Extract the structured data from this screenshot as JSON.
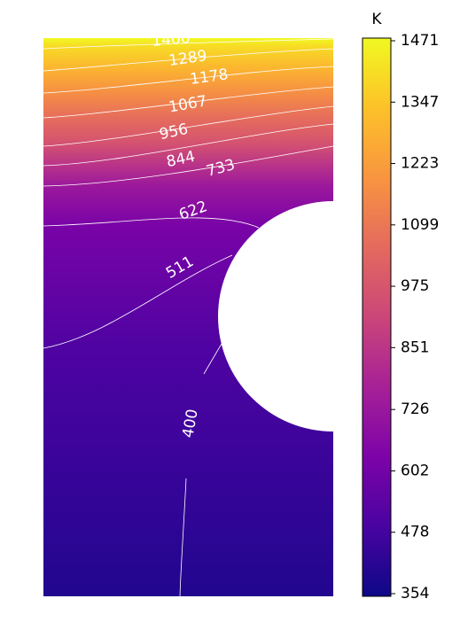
{
  "chart_data": {
    "type": "contour",
    "contour_levels": [
      1400,
      1289,
      1178,
      1067,
      956,
      844,
      733,
      622,
      511,
      400
    ],
    "colorbar_label": "K",
    "clim": [
      354,
      1471
    ],
    "colorbar_ticks": [
      354,
      478,
      602,
      726,
      851,
      975,
      1099,
      1223,
      1347,
      1471
    ],
    "colormap": "plasma"
  }
}
